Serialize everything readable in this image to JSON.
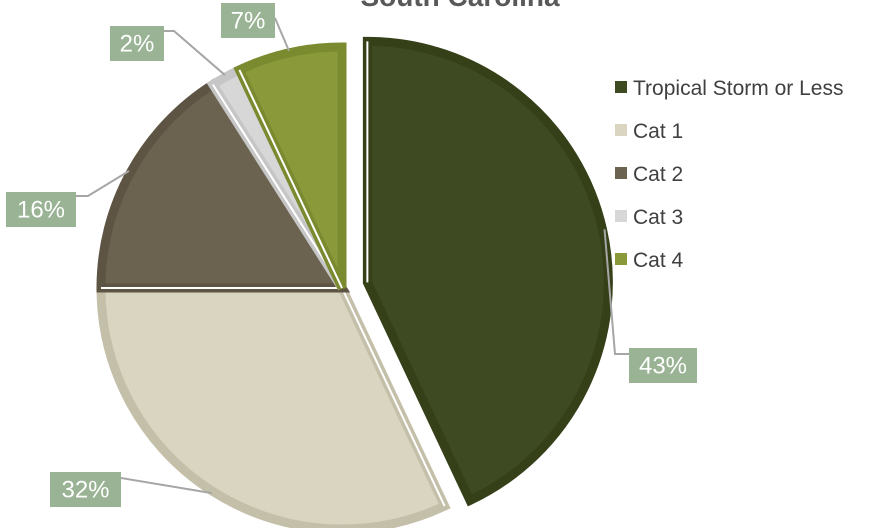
{
  "chart_data": {
    "type": "pie",
    "title": "South Carolina",
    "categories": [
      "Tropical Storm or Less",
      "Cat 1",
      "Cat 2",
      "Cat 3",
      "Cat 4"
    ],
    "values": [
      43,
      32,
      16,
      2,
      7
    ],
    "data_labels": [
      "43%",
      "32%",
      "16%",
      "2%",
      "7%"
    ],
    "colors": [
      "#3e4a22",
      "#d9d5c1",
      "#6b6250",
      "#d7d7d7",
      "#8a9a3a"
    ],
    "outline_colors": [
      "#354019",
      "#c4bfa8",
      "#5d5443",
      "#c6c6c6",
      "#7a8a2f"
    ],
    "label_background": "#99b394",
    "exploded": [
      "Tropical Storm or Less"
    ],
    "legend_position": "right"
  }
}
